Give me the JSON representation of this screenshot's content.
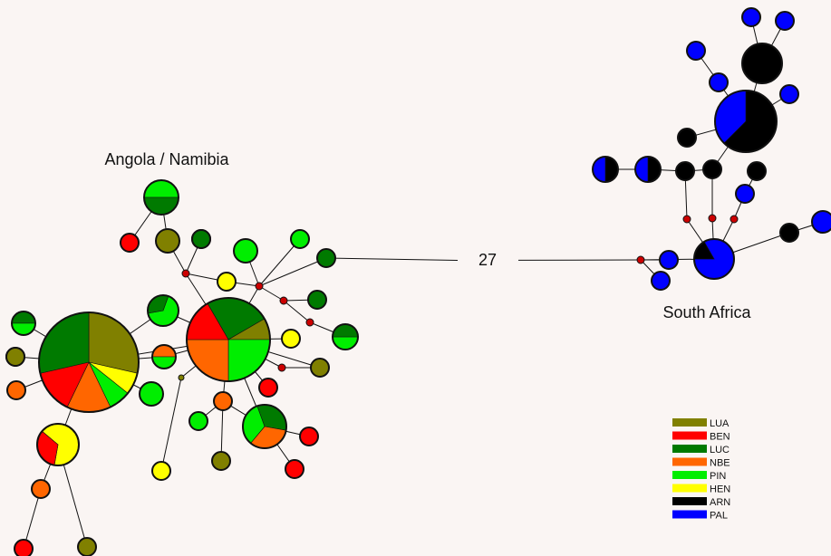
{
  "labels": {
    "angola": "Angola / Namibia",
    "south_africa": "South Africa",
    "long_branch": "27"
  },
  "colors": {
    "LUA": "#808000",
    "BEN": "#ff0000",
    "LUC": "#007a00",
    "NBE": "#ff6600",
    "PIN": "#00ee00",
    "HEN": "#ffff00",
    "ARN": "#000000",
    "PAL": "#0000ff",
    "median": "#cc0000",
    "median_small": "#808000"
  },
  "legend": [
    {
      "code": "LUA",
      "label": "LUA"
    },
    {
      "code": "BEN",
      "label": "BEN"
    },
    {
      "code": "LUC",
      "label": "LUC"
    },
    {
      "code": "NBE",
      "label": "NBE"
    },
    {
      "code": "PIN",
      "label": "PIN"
    },
    {
      "code": "HEN",
      "label": "HEN"
    },
    {
      "code": "ARN",
      "label": "ARN"
    },
    {
      "code": "PAL",
      "label": "PAL"
    }
  ],
  "haplotypes": [
    {
      "id": "A1",
      "comp": [
        [
          "LUA",
          4
        ],
        [
          "HEN",
          1
        ],
        [
          "PIN",
          1
        ],
        [
          "NBE",
          2
        ],
        [
          "BEN",
          2
        ],
        [
          "LUC",
          4
        ]
      ]
    },
    {
      "id": "A2",
      "comp": [
        [
          "LUC",
          3
        ],
        [
          "LUA",
          1
        ],
        [
          "PIN",
          3
        ],
        [
          "NBE",
          3
        ],
        [
          "BEN",
          2
        ]
      ]
    },
    {
      "id": "A3",
      "comp": [
        [
          "PIN",
          1
        ],
        [
          "LUC",
          1
        ]
      ]
    },
    {
      "id": "A4",
      "comp": [
        [
          "BEN",
          1
        ]
      ]
    },
    {
      "id": "A5",
      "comp": [
        [
          "LUA",
          1
        ]
      ]
    },
    {
      "id": "A6",
      "comp": [
        [
          "LUC",
          1
        ]
      ]
    },
    {
      "id": "A7",
      "comp": [
        [
          "PIN",
          1
        ]
      ]
    },
    {
      "id": "A8",
      "comp": [
        [
          "HEN",
          1
        ]
      ]
    },
    {
      "id": "A9",
      "comp": [
        [
          "PIN",
          1
        ]
      ]
    },
    {
      "id": "A10",
      "comp": [
        [
          "LUC",
          1
        ]
      ]
    },
    {
      "id": "A11",
      "comp": [
        [
          "PIN",
          2
        ],
        [
          "LUC",
          1
        ]
      ]
    },
    {
      "id": "A12",
      "comp": [
        [
          "NBE",
          1
        ],
        [
          "PIN",
          1
        ]
      ]
    },
    {
      "id": "A13",
      "comp": [
        [
          "PIN",
          1
        ]
      ]
    },
    {
      "id": "A14",
      "comp": [
        [
          "PIN",
          1
        ],
        [
          "LUC",
          1
        ]
      ]
    },
    {
      "id": "A15",
      "comp": [
        [
          "LUA",
          1
        ]
      ]
    },
    {
      "id": "A16",
      "comp": [
        [
          "LUA",
          1
        ]
      ]
    },
    {
      "id": "A17",
      "comp": [
        [
          "NBE",
          1
        ]
      ]
    },
    {
      "id": "A18",
      "comp": [
        [
          "HEN",
          2
        ],
        [
          "BEN",
          1
        ]
      ]
    },
    {
      "id": "A19",
      "comp": [
        [
          "NBE",
          1
        ]
      ]
    },
    {
      "id": "A20",
      "comp": [
        [
          "BEN",
          1
        ]
      ]
    },
    {
      "id": "A21",
      "comp": [
        [
          "LUC",
          1
        ]
      ]
    },
    {
      "id": "A22",
      "comp": [
        [
          "PIN",
          1
        ]
      ]
    },
    {
      "id": "A23",
      "comp": [
        [
          "LUC",
          1
        ]
      ]
    },
    {
      "id": "A24",
      "comp": [
        [
          "HEN",
          1
        ]
      ]
    },
    {
      "id": "A25",
      "comp": [
        [
          "LUA",
          1
        ]
      ]
    },
    {
      "id": "A26",
      "comp": [
        [
          "BEN",
          1
        ]
      ]
    },
    {
      "id": "A27",
      "comp": [
        [
          "NBE",
          1
        ]
      ]
    },
    {
      "id": "A28",
      "comp": [
        [
          "PIN",
          1
        ]
      ]
    },
    {
      "id": "A29",
      "comp": [
        [
          "HEN",
          1
        ]
      ]
    },
    {
      "id": "A30",
      "comp": [
        [
          "LUA",
          1
        ]
      ]
    },
    {
      "id": "A31",
      "comp": [
        [
          "LUC",
          1
        ],
        [
          "NBE",
          1
        ],
        [
          "PIN",
          1
        ]
      ]
    },
    {
      "id": "A32",
      "comp": [
        [
          "BEN",
          1
        ]
      ]
    },
    {
      "id": "A33",
      "comp": [
        [
          "BEN",
          1
        ]
      ]
    },
    {
      "id": "A34",
      "comp": [
        [
          "LUC",
          1
        ],
        [
          "PIN",
          1
        ]
      ]
    },
    {
      "id": "A35",
      "comp": [
        [
          "LUA",
          1
        ]
      ]
    },
    {
      "id": "S1",
      "comp": [
        [
          "PAL",
          1
        ]
      ]
    },
    {
      "id": "S2",
      "comp": [
        [
          "PAL",
          1
        ]
      ]
    },
    {
      "id": "S3",
      "comp": [
        [
          "ARN",
          1
        ]
      ]
    },
    {
      "id": "S4",
      "comp": [
        [
          "PAL",
          1
        ]
      ]
    },
    {
      "id": "S5",
      "comp": [
        [
          "PAL",
          1
        ]
      ]
    },
    {
      "id": "S6",
      "comp": [
        [
          "PAL",
          1
        ]
      ]
    },
    {
      "id": "S7",
      "comp": [
        [
          "ARN",
          5
        ],
        [
          "PAL",
          3
        ]
      ]
    },
    {
      "id": "S8",
      "comp": [
        [
          "ARN",
          1
        ]
      ]
    },
    {
      "id": "S9",
      "comp": [
        [
          "ARN",
          1
        ],
        [
          "PAL",
          1
        ]
      ]
    },
    {
      "id": "S10",
      "comp": [
        [
          "ARN",
          1
        ],
        [
          "PAL",
          1
        ]
      ]
    },
    {
      "id": "S11",
      "comp": [
        [
          "ARN",
          1
        ]
      ]
    },
    {
      "id": "S12",
      "comp": [
        [
          "ARN",
          1
        ]
      ]
    },
    {
      "id": "S13",
      "comp": [
        [
          "ARN",
          1
        ]
      ]
    },
    {
      "id": "S14",
      "comp": [
        [
          "PAL",
          1
        ]
      ]
    },
    {
      "id": "S15",
      "comp": [
        [
          "PAL",
          5
        ],
        [
          "ARN",
          1
        ]
      ]
    },
    {
      "id": "S16",
      "comp": [
        [
          "ARN",
          1
        ]
      ]
    },
    {
      "id": "S17",
      "comp": [
        [
          "PAL",
          1
        ]
      ]
    },
    {
      "id": "S18",
      "comp": [
        [
          "PAL",
          1
        ]
      ]
    },
    {
      "id": "S19",
      "comp": [
        [
          "PAL",
          1
        ]
      ]
    }
  ]
}
